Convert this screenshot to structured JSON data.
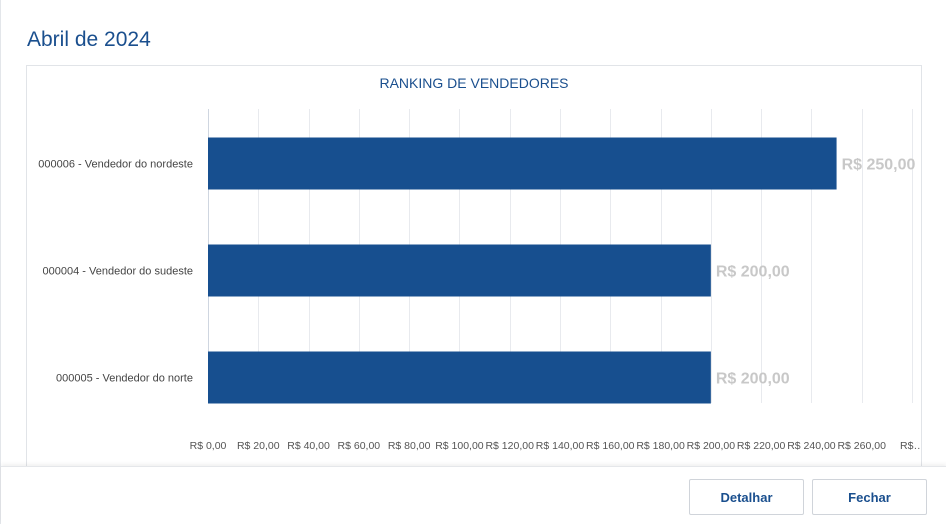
{
  "modal": {
    "title": "Abril de 2024"
  },
  "footer": {
    "detail_label": "Detalhar",
    "close_label": "Fechar"
  },
  "colors": {
    "bar": "#174f8f",
    "value_label": "#c8c8c8",
    "grid": "#e8eaee",
    "tick_text": "#555555"
  },
  "chart_data": {
    "type": "bar",
    "orientation": "horizontal",
    "title": "RANKING DE VENDEDORES",
    "categories": [
      "000006 - Vendedor do nordeste",
      "000004 - Vendedor do sudeste",
      "000005 - Vendedor do norte"
    ],
    "values": [
      250,
      200,
      200
    ],
    "value_labels": [
      "R$ 250,00",
      "R$ 200,00",
      "R$ 200,00"
    ],
    "xlim": [
      0,
      280
    ],
    "x_ticks": [
      0,
      20,
      40,
      60,
      80,
      100,
      120,
      140,
      160,
      180,
      200,
      220,
      240,
      260,
      280
    ],
    "x_tick_labels": [
      "R$ 0,00",
      "R$ 20,00",
      "R$ 40,00",
      "R$ 60,00",
      "R$ 80,00",
      "R$ 100,00",
      "R$ 120,00",
      "R$ 140,00",
      "R$ 160,00",
      "R$ 180,00",
      "R$ 200,00",
      "R$ 220,00",
      "R$ 240,00",
      "R$ 260,00",
      "R$…"
    ],
    "grid": true,
    "legend": "none"
  }
}
